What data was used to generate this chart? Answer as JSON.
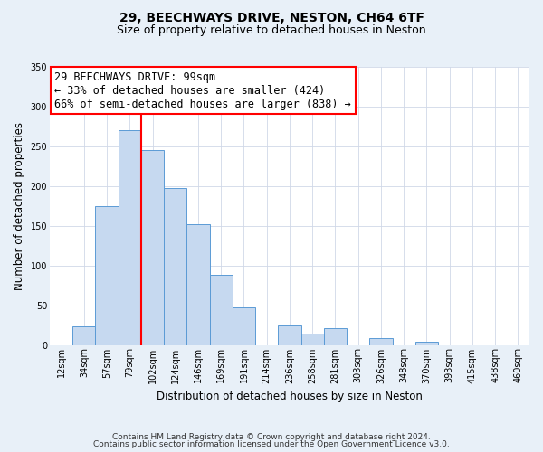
{
  "title": "29, BEECHWAYS DRIVE, NESTON, CH64 6TF",
  "subtitle": "Size of property relative to detached houses in Neston",
  "xlabel": "Distribution of detached houses by size in Neston",
  "ylabel": "Number of detached properties",
  "bar_labels": [
    "12sqm",
    "34sqm",
    "57sqm",
    "79sqm",
    "102sqm",
    "124sqm",
    "146sqm",
    "169sqm",
    "191sqm",
    "214sqm",
    "236sqm",
    "258sqm",
    "281sqm",
    "303sqm",
    "326sqm",
    "348sqm",
    "370sqm",
    "393sqm",
    "415sqm",
    "438sqm",
    "460sqm"
  ],
  "bar_values": [
    0,
    23,
    175,
    270,
    245,
    197,
    152,
    88,
    47,
    0,
    25,
    14,
    21,
    0,
    8,
    0,
    4,
    0,
    0,
    0,
    0
  ],
  "bar_color": "#c6d9f0",
  "bar_edge_color": "#5b9bd5",
  "vline_position": 3.5,
  "vline_color": "red",
  "annotation_title": "29 BEECHWAYS DRIVE: 99sqm",
  "annotation_line1": "← 33% of detached houses are smaller (424)",
  "annotation_line2": "66% of semi-detached houses are larger (838) →",
  "annotation_box_facecolor": "white",
  "annotation_box_edgecolor": "red",
  "annotation_fontsize": 8.5,
  "ylim": [
    0,
    350
  ],
  "yticks": [
    0,
    50,
    100,
    150,
    200,
    250,
    300,
    350
  ],
  "footer_line1": "Contains HM Land Registry data © Crown copyright and database right 2024.",
  "footer_line2": "Contains public sector information licensed under the Open Government Licence v3.0.",
  "bg_color": "#e8f0f8",
  "plot_bg_color": "#ffffff",
  "title_fontsize": 10,
  "subtitle_fontsize": 9,
  "axis_label_fontsize": 8.5,
  "tick_fontsize": 7,
  "footer_fontsize": 6.5,
  "grid_color": "#d0d8e8"
}
